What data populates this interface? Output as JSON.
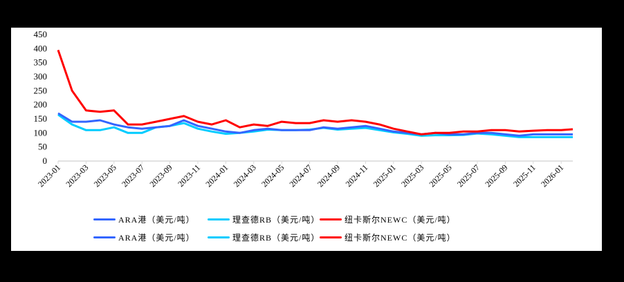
{
  "chart_data": {
    "type": "line",
    "title": "",
    "xlabel": "",
    "ylabel": "",
    "ylim": [
      0,
      450
    ],
    "yticks": [
      0,
      50,
      100,
      150,
      200,
      250,
      300,
      350,
      400,
      450
    ],
    "x_tick_labels": [
      "2023-01",
      "2023-03",
      "2023-05",
      "2023-07",
      "2023-09",
      "2023-11",
      "2024-01",
      "2024-03",
      "2024-05",
      "2024-07",
      "2024-09",
      "2024-11",
      "2025-01",
      "2025-03",
      "2025-05",
      "2025-07",
      "2025-09",
      "2025-11",
      "2026-01"
    ],
    "grid": false,
    "legend_position": "bottom",
    "x": [
      "2023-01",
      "2023-02",
      "2023-03",
      "2023-04",
      "2023-05",
      "2023-06",
      "2023-07",
      "2023-08",
      "2023-09",
      "2023-10",
      "2023-11",
      "2023-12",
      "2024-01",
      "2024-02",
      "2024-03",
      "2024-04",
      "2024-05",
      "2024-06",
      "2024-07",
      "2024-08",
      "2024-09",
      "2024-10",
      "2024-11",
      "2024-12",
      "2025-01",
      "2025-02",
      "2025-03",
      "2025-04",
      "2025-05",
      "2025-06",
      "2025-07",
      "2025-08",
      "2025-09",
      "2025-10",
      "2025-11",
      "2025-12",
      "2026-01",
      "2026-02"
    ],
    "series": [
      {
        "name": "ARA港（美元/吨）",
        "color": "#3366ff",
        "values": [
          170,
          140,
          140,
          145,
          130,
          120,
          115,
          120,
          125,
          145,
          125,
          115,
          105,
          100,
          110,
          115,
          110,
          110,
          110,
          120,
          115,
          120,
          125,
          115,
          105,
          100,
          95,
          100,
          95,
          95,
          100,
          100,
          95,
          90,
          95,
          95,
          95,
          95
        ]
      },
      {
        "name": "理查德RB（美元/吨）",
        "color": "#00ccff",
        "values": [
          165,
          130,
          110,
          110,
          120,
          100,
          100,
          120,
          125,
          135,
          115,
          105,
          97,
          100,
          105,
          112,
          110,
          110,
          112,
          118,
          112,
          115,
          118,
          110,
          102,
          97,
          90,
          92,
          92,
          93,
          98,
          95,
          90,
          85,
          85,
          85,
          85,
          85
        ]
      },
      {
        "name": "纽卡斯尔NEWC（美元/吨）",
        "color": "#ff0000",
        "values": [
          395,
          250,
          180,
          175,
          180,
          130,
          130,
          140,
          150,
          160,
          140,
          130,
          145,
          120,
          130,
          125,
          140,
          135,
          135,
          145,
          140,
          145,
          140,
          130,
          115,
          105,
          95,
          100,
          100,
          105,
          105,
          110,
          110,
          105,
          108,
          110,
          110,
          113
        ]
      }
    ],
    "legend_rows": [
      [
        "ARA港（美元/吨）",
        "理查德RB（美元/吨）",
        "纽卡斯尔NEWC（美元/吨）"
      ],
      [
        "ARA港（美元/吨）",
        "理查德RB（美元/吨）",
        "纽卡斯尔NEWC（美元/吨）"
      ]
    ]
  },
  "legend": {
    "row1": {
      "ara": "ARA港（美元/吨）",
      "rb": "理查德RB（美元/吨）",
      "newc": "纽卡斯尔NEWC（美元/吨）"
    },
    "row2": {
      "ara": "ARA港（美元/吨）",
      "rb": "理查德RB（美元/吨）",
      "newc": "纽卡斯尔NEWC（美元/吨）"
    }
  },
  "colors": {
    "ara": "#3366ff",
    "rb": "#00ccff",
    "newc": "#ff0000",
    "axis": "#d9d9d9"
  }
}
